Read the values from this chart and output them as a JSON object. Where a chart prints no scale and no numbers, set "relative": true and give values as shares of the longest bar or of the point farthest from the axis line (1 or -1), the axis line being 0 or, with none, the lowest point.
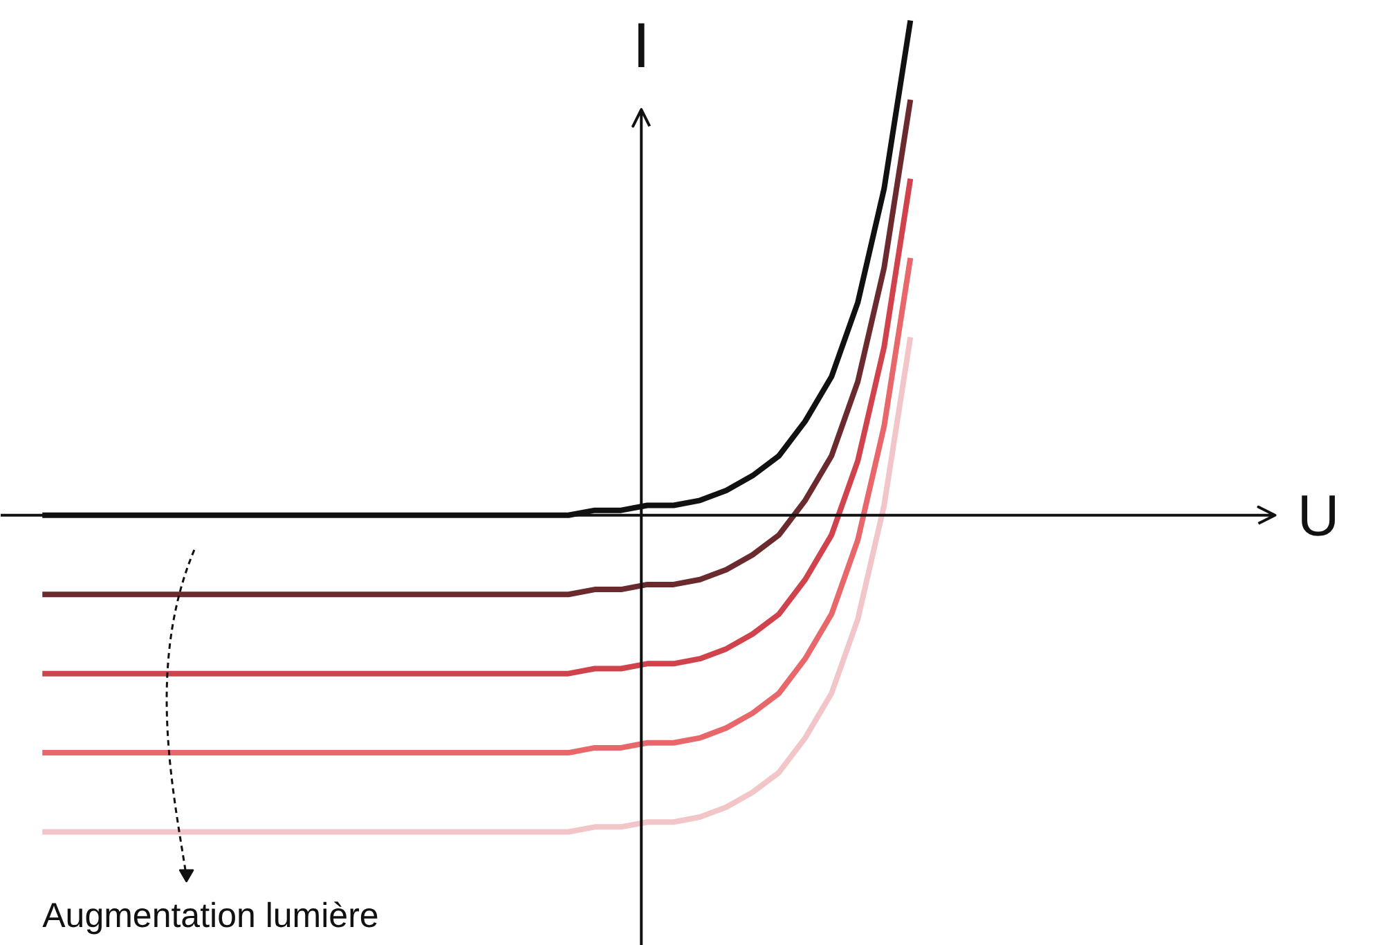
{
  "chart_data": {
    "type": "line",
    "relative": true,
    "ylabel": "I",
    "annotations": [
      "Augmentation lumière",
      "U"
    ],
    "categories": [
      null,
      null,
      null,
      null,
      null,
      null,
      null,
      null,
      null,
      null,
      null,
      null,
      null,
      null,
      null,
      null,
      null,
      null,
      null,
      null,
      null,
      null,
      null,
      null,
      null,
      null,
      null,
      null,
      null,
      null,
      null,
      null,
      null,
      null
    ],
    "series": [
      {
        "color": "#111111",
        "values": [
          0,
          0,
          0,
          0,
          0,
          0,
          0,
          0,
          0,
          0,
          0,
          0,
          0,
          0,
          0,
          0,
          0,
          0,
          0,
          0,
          0,
          0.01,
          0.01,
          0.02,
          0.02,
          0.03,
          0.05,
          0.08,
          0.12,
          0.19,
          0.28,
          0.43,
          0.66,
          1.0
        ]
      },
      {
        "color": "#6b2a2e",
        "values": [
          -0.16,
          -0.16,
          -0.16,
          -0.16,
          -0.16,
          -0.16,
          -0.16,
          -0.16,
          -0.16,
          -0.16,
          -0.16,
          -0.16,
          -0.16,
          -0.16,
          -0.16,
          -0.16,
          -0.16,
          -0.16,
          -0.16,
          -0.16,
          -0.16,
          -0.15,
          -0.15,
          -0.14,
          -0.14,
          -0.13,
          -0.11,
          -0.08,
          -0.04,
          0.03,
          0.12,
          0.27,
          0.5,
          0.84
        ]
      },
      {
        "color": "#d0434c",
        "values": [
          -0.32,
          -0.32,
          -0.32,
          -0.32,
          -0.32,
          -0.32,
          -0.32,
          -0.32,
          -0.32,
          -0.32,
          -0.32,
          -0.32,
          -0.32,
          -0.32,
          -0.32,
          -0.32,
          -0.32,
          -0.32,
          -0.32,
          -0.32,
          -0.32,
          -0.31,
          -0.31,
          -0.3,
          -0.3,
          -0.29,
          -0.27,
          -0.24,
          -0.2,
          -0.13,
          -0.04,
          0.11,
          0.34,
          0.68
        ]
      },
      {
        "color": "#e8676b",
        "values": [
          -0.48,
          -0.48,
          -0.48,
          -0.48,
          -0.48,
          -0.48,
          -0.48,
          -0.48,
          -0.48,
          -0.48,
          -0.48,
          -0.48,
          -0.48,
          -0.48,
          -0.48,
          -0.48,
          -0.48,
          -0.48,
          -0.48,
          -0.48,
          -0.48,
          -0.47,
          -0.47,
          -0.46,
          -0.46,
          -0.45,
          -0.43,
          -0.4,
          -0.36,
          -0.29,
          -0.2,
          -0.05,
          0.18,
          0.52
        ]
      },
      {
        "color": "#f2c6c8",
        "values": [
          -0.64,
          -0.64,
          -0.64,
          -0.64,
          -0.64,
          -0.64,
          -0.64,
          -0.64,
          -0.64,
          -0.64,
          -0.64,
          -0.64,
          -0.64,
          -0.64,
          -0.64,
          -0.64,
          -0.64,
          -0.64,
          -0.64,
          -0.64,
          -0.64,
          -0.63,
          -0.63,
          -0.62,
          -0.62,
          -0.61,
          -0.59,
          -0.56,
          -0.52,
          -0.45,
          -0.36,
          -0.21,
          0.02,
          0.36
        ]
      }
    ]
  }
}
